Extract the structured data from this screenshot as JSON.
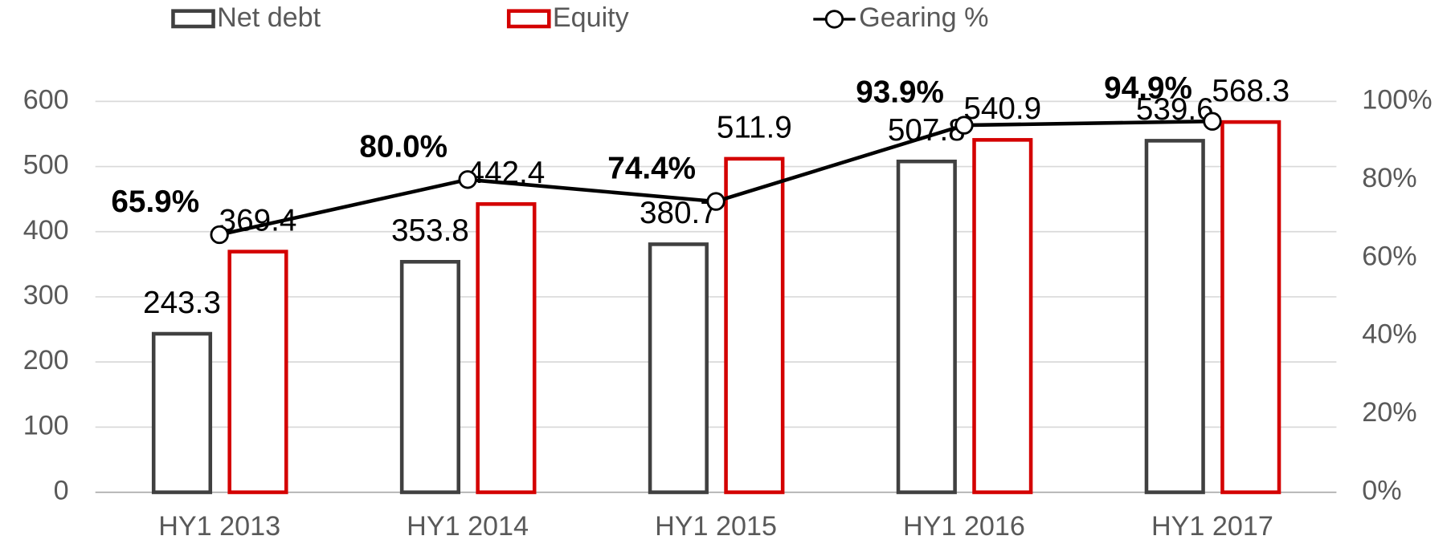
{
  "chart_data": {
    "type": "bar",
    "categories": [
      "HY1 2013",
      "HY1 2014",
      "HY1 2015",
      "HY1 2016",
      "HY1 2017"
    ],
    "series": [
      {
        "name": "Net debt",
        "color": "#404040",
        "values": [
          243.3,
          353.8,
          380.7,
          507.8,
          539.6
        ]
      },
      {
        "name": "Equity",
        "color": "#d40000",
        "values": [
          369.4,
          442.4,
          511.9,
          540.9,
          568.3
        ]
      },
      {
        "name": "Gearing %",
        "color": "#000000",
        "type": "line",
        "axis": "y2",
        "values": [
          65.9,
          80.0,
          74.4,
          93.9,
          94.9
        ],
        "value_labels": [
          "65.9%",
          "80.0%",
          "74.4%",
          "93.9%",
          "94.9%"
        ]
      }
    ],
    "ylim": [
      0,
      600
    ],
    "yticks": [
      0,
      100,
      200,
      300,
      400,
      500,
      600
    ],
    "y2lim": [
      0,
      100
    ],
    "y2ticks": [
      {
        "value": 0,
        "label": "0%"
      },
      {
        "value": 20,
        "label": "20%"
      },
      {
        "value": 40,
        "label": "40%"
      },
      {
        "value": 60,
        "label": "60%"
      },
      {
        "value": 80,
        "label": "80%"
      },
      {
        "value": 100,
        "label": "100%"
      }
    ],
    "grid": true,
    "legend": "top"
  }
}
